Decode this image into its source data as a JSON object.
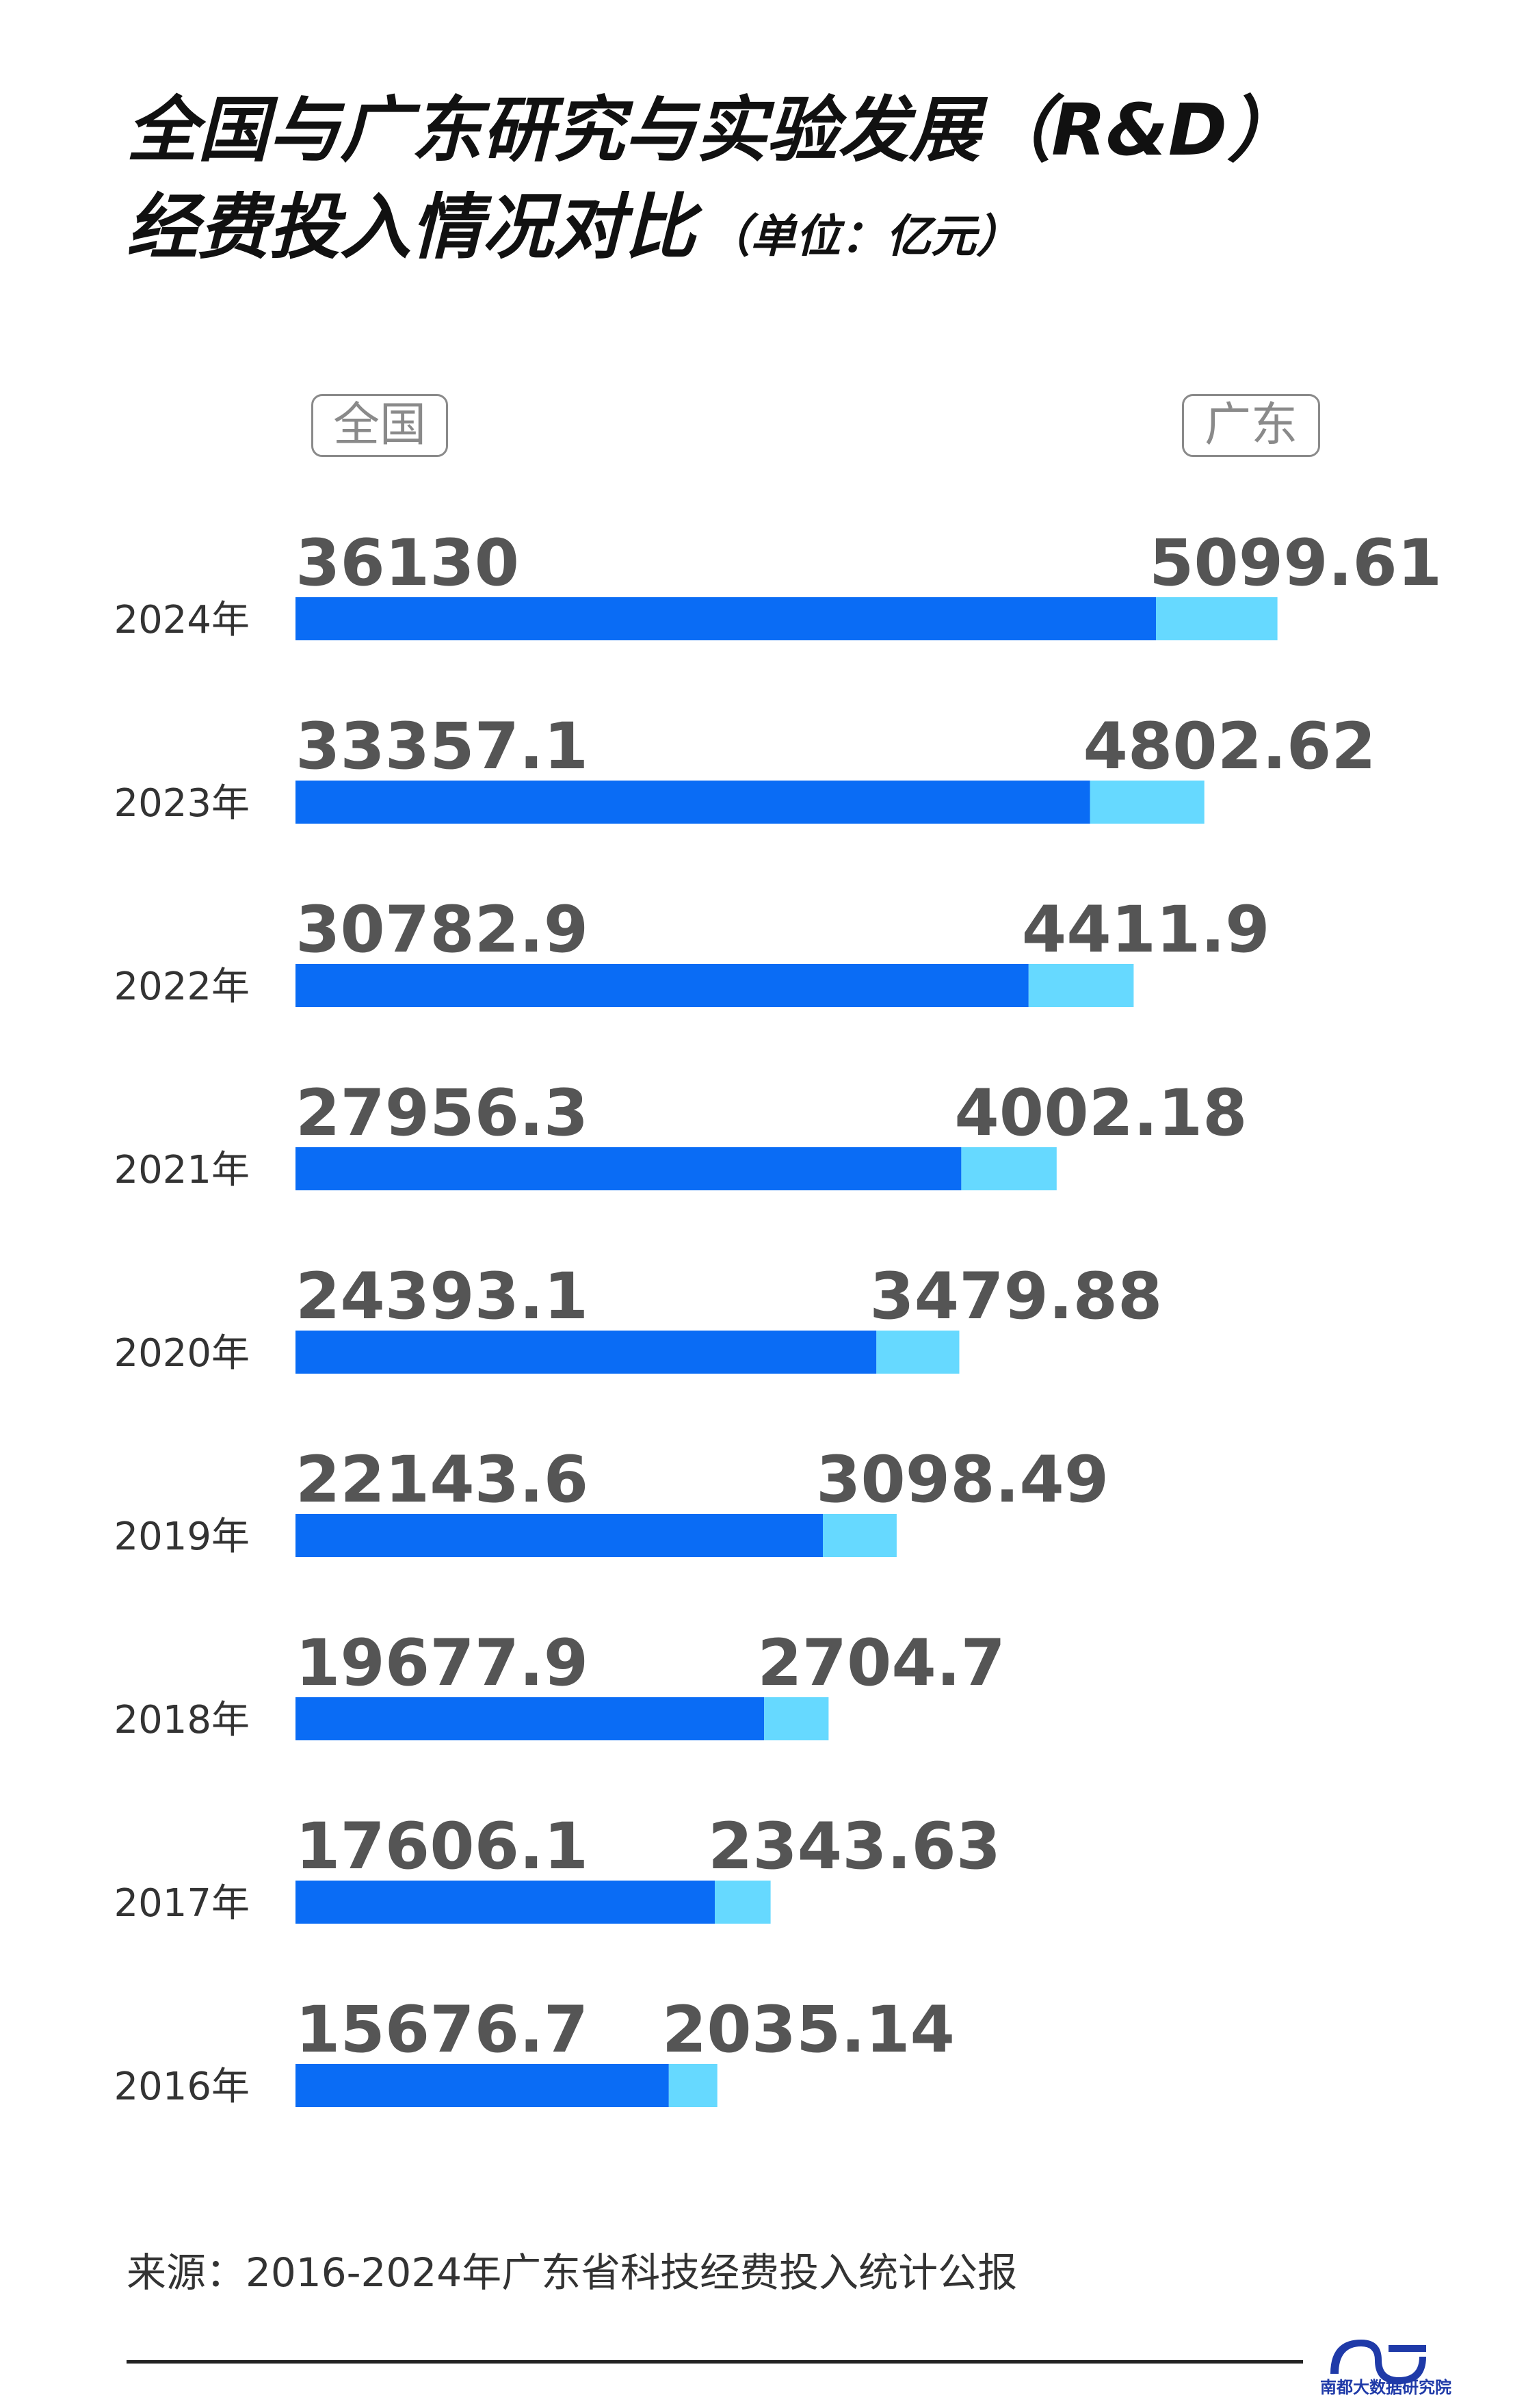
{
  "title": {
    "line1": "全国与广东研究与实验发展（R&D）",
    "line2": "经费投入情况对比",
    "unit": "（单位：亿元）"
  },
  "legend": {
    "national": "全国",
    "guangdong": "广东"
  },
  "colors": {
    "national": "#0a6cf5",
    "guangdong": "#66d9ff",
    "value_text": "#555555",
    "year_text": "#333333"
  },
  "chart_data": {
    "type": "bar",
    "orientation": "horizontal",
    "stacked": true,
    "categories": [
      "2024年",
      "2023年",
      "2022年",
      "2021年",
      "2020年",
      "2019年",
      "2018年",
      "2017年",
      "2016年"
    ],
    "series": [
      {
        "name": "全国",
        "values": [
          36130,
          33357.1,
          30782.9,
          27956.3,
          24393.1,
          22143.6,
          19677.9,
          17606.1,
          15676.7
        ],
        "labels": [
          "36130",
          "33357.1",
          "30782.9",
          "27956.3",
          "24393.1",
          "22143.6",
          "19677.9",
          "17606.1",
          "15676.7"
        ]
      },
      {
        "name": "广东",
        "values": [
          5099.61,
          4802.62,
          4411.9,
          4002.18,
          3479.88,
          3098.49,
          2704.7,
          2343.63,
          2035.14
        ],
        "labels": [
          "5099.61",
          "4802.62",
          "4411.9",
          "4002.18",
          "3479.88",
          "3098.49",
          "2704.7",
          "2343.63",
          "2035.14"
        ]
      }
    ],
    "xlim": [
      0,
      41229.61
    ],
    "grid": false,
    "legend": "top"
  },
  "source": "来源：2016-2024年广东省科技经费投入统计公报",
  "logo_text": "南都大数据研究院"
}
